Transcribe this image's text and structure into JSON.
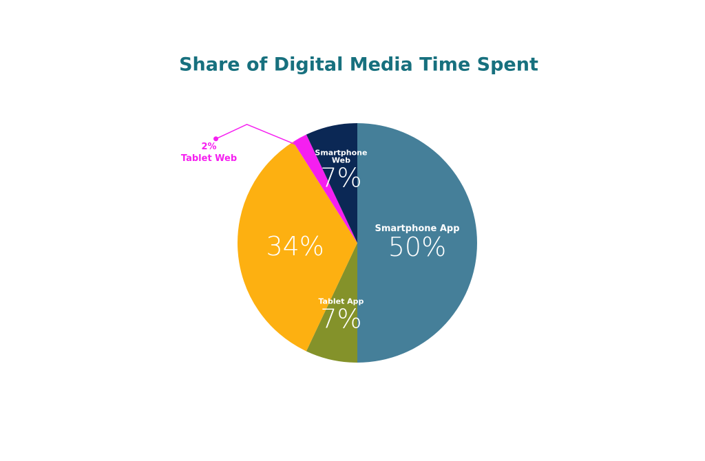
{
  "chart_data": {
    "type": "pie",
    "title": "Share of Digital Media Time Spent",
    "categories": [
      "Smartphone App",
      "Tablet App",
      null,
      "Tablet Web",
      "Smartphone Web"
    ],
    "values": [
      50,
      7,
      34,
      2,
      7
    ],
    "value_labels": [
      "50%",
      "7%",
      "34%",
      "2%",
      "7%"
    ],
    "colors": [
      "#457f99",
      "#84922a",
      "#fdb011",
      "#f51ff0",
      "#0b2855"
    ]
  }
}
